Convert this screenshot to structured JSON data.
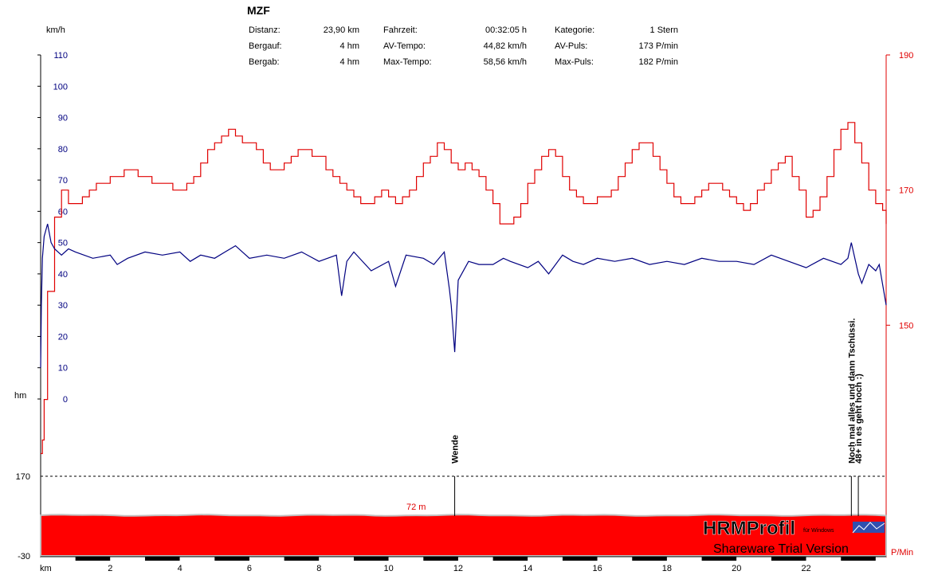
{
  "header": {
    "title": "MZF",
    "stats": [
      {
        "label": "Distanz:",
        "value": "23,90 km"
      },
      {
        "label": "Bergauf:",
        "value": "4 hm"
      },
      {
        "label": "Bergab:",
        "value": "4 hm"
      },
      {
        "label": "Fahrzeit:",
        "value": "00:32:05 h"
      },
      {
        "label": "AV-Tempo:",
        "value": "44,82 km/h"
      },
      {
        "label": "Max-Tempo:",
        "value": "58,56 km/h"
      },
      {
        "label": "Kategorie:",
        "value": "1 Stern"
      },
      {
        "label": "AV-Puls:",
        "value": "173 P/min"
      },
      {
        "label": "Max-Puls:",
        "value": "182 P/min"
      }
    ]
  },
  "watermark": {
    "brand": "HRMProfil",
    "sub": "für Windows",
    "version": "Shareware Trial  Version"
  },
  "chart_data": {
    "type": "line",
    "x": {
      "label": "km",
      "ticks": [
        2,
        4,
        6,
        8,
        10,
        12,
        14,
        16,
        18,
        20,
        22
      ],
      "range": [
        0,
        24.3
      ]
    },
    "y_speed": {
      "unit": "km/h",
      "ticks": [
        0,
        10,
        20,
        30,
        40,
        50,
        60,
        70,
        80,
        90,
        100,
        110
      ],
      "range": [
        0,
        110
      ]
    },
    "y_pulse": {
      "unit": "P/Min",
      "ticks": [
        150,
        170,
        190
      ],
      "range": [
        130,
        190
      ]
    },
    "y_altitude": {
      "unit": "hm",
      "ticks": [
        170,
        -30
      ],
      "range": [
        -30,
        170
      ]
    },
    "altitude_label": "72 m",
    "annotations": [
      {
        "text": "Wende",
        "x": 11.9
      },
      {
        "text": "Noch mal alles und dann Tschüssi.",
        "x": 23.3
      },
      {
        "text": "48+ in es geht hoch :)",
        "x": 23.5
      }
    ],
    "series": [
      {
        "role": "pulse",
        "color": "#e00000",
        "x": [
          0,
          0.05,
          0.1,
          0.2,
          0.4,
          0.6,
          0.8,
          1.0,
          1.2,
          1.4,
          1.6,
          1.8,
          2.0,
          2.2,
          2.4,
          2.6,
          2.8,
          3.0,
          3.2,
          3.4,
          3.6,
          3.8,
          4.0,
          4.2,
          4.4,
          4.6,
          4.8,
          5.0,
          5.2,
          5.4,
          5.6,
          5.8,
          6.0,
          6.2,
          6.4,
          6.6,
          6.8,
          7.0,
          7.2,
          7.4,
          7.6,
          7.8,
          8.0,
          8.2,
          8.4,
          8.6,
          8.8,
          9.0,
          9.2,
          9.4,
          9.6,
          9.8,
          10.0,
          10.2,
          10.4,
          10.6,
          10.8,
          11.0,
          11.2,
          11.4,
          11.6,
          11.8,
          12.0,
          12.2,
          12.4,
          12.6,
          12.8,
          13.0,
          13.2,
          13.4,
          13.6,
          13.8,
          14.0,
          14.2,
          14.4,
          14.6,
          14.8,
          15.0,
          15.2,
          15.4,
          15.6,
          15.8,
          16.0,
          16.2,
          16.4,
          16.6,
          16.8,
          17.0,
          17.2,
          17.4,
          17.6,
          17.8,
          18.0,
          18.2,
          18.4,
          18.6,
          18.8,
          19.0,
          19.2,
          19.4,
          19.6,
          19.8,
          20.0,
          20.2,
          20.4,
          20.6,
          20.8,
          21.0,
          21.2,
          21.4,
          21.6,
          21.8,
          22.0,
          22.2,
          22.4,
          22.6,
          22.8,
          23.0,
          23.2,
          23.4,
          23.6,
          23.8,
          24.0,
          24.2,
          24.3
        ],
        "values": [
          131,
          133,
          139,
          155,
          166,
          170,
          168,
          168,
          169,
          170,
          171,
          171,
          172,
          172,
          173,
          173,
          172,
          172,
          171,
          171,
          171,
          170,
          170,
          171,
          172,
          174,
          176,
          177,
          178,
          179,
          178,
          177,
          177,
          176,
          174,
          173,
          173,
          174,
          175,
          176,
          176,
          175,
          175,
          173,
          172,
          171,
          170,
          169,
          168,
          168,
          169,
          170,
          169,
          168,
          169,
          170,
          172,
          174,
          175,
          177,
          176,
          174,
          173,
          174,
          173,
          172,
          170,
          168,
          165,
          165,
          166,
          168,
          171,
          173,
          175,
          176,
          175,
          172,
          170,
          169,
          168,
          168,
          169,
          169,
          170,
          172,
          174,
          176,
          177,
          177,
          175,
          173,
          171,
          169,
          168,
          168,
          169,
          170,
          171,
          171,
          170,
          169,
          168,
          167,
          168,
          170,
          171,
          173,
          174,
          175,
          172,
          170,
          166,
          167,
          169,
          172,
          176,
          179,
          180,
          177,
          174,
          170,
          168,
          167,
          165
        ]
      },
      {
        "role": "speed",
        "color": "#000080",
        "x": [
          0,
          0.02,
          0.05,
          0.1,
          0.2,
          0.3,
          0.4,
          0.6,
          0.8,
          1.0,
          1.5,
          2.0,
          2.2,
          2.5,
          3.0,
          3.5,
          4.0,
          4.3,
          4.6,
          5.0,
          5.3,
          5.6,
          6.0,
          6.5,
          7.0,
          7.5,
          8.0,
          8.5,
          8.65,
          8.8,
          9.0,
          9.5,
          10.0,
          10.2,
          10.5,
          11.0,
          11.3,
          11.6,
          11.75,
          11.8,
          11.9,
          12.0,
          12.3,
          12.6,
          13.0,
          13.3,
          13.5,
          14.0,
          14.3,
          14.6,
          15.0,
          15.3,
          15.6,
          16.0,
          16.5,
          17.0,
          17.5,
          18.0,
          18.5,
          19.0,
          19.5,
          20.0,
          20.5,
          21.0,
          21.5,
          22.0,
          22.5,
          23.0,
          23.2,
          23.3,
          23.5,
          23.6,
          23.8,
          24.0,
          24.1,
          24.3
        ],
        "values": [
          10,
          30,
          45,
          52,
          56,
          50,
          48,
          46,
          48,
          47,
          45,
          46,
          43,
          45,
          47,
          46,
          47,
          44,
          46,
          45,
          47,
          49,
          45,
          46,
          45,
          47,
          44,
          46,
          33,
          44,
          47,
          41,
          44,
          36,
          46,
          45,
          43,
          47,
          35,
          30,
          15,
          38,
          44,
          43,
          43,
          45,
          44,
          42,
          44,
          40,
          46,
          44,
          43,
          45,
          44,
          45,
          43,
          44,
          43,
          45,
          44,
          44,
          43,
          46,
          44,
          42,
          45,
          43,
          45,
          50,
          40,
          37,
          43,
          41,
          43,
          30
        ]
      }
    ]
  }
}
